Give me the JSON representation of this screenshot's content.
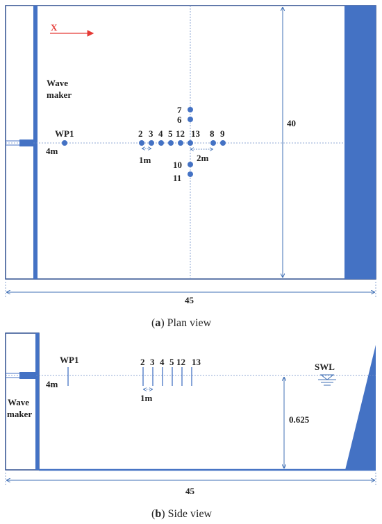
{
  "colors": {
    "blue": "#4472C4",
    "arrow_red": "#E53935",
    "frame": "#2F4F8F",
    "dim": "#3F6FB5",
    "text": "#222222"
  },
  "plan_view": {
    "axis_label": "X",
    "wave_maker_line1": "Wave",
    "wave_maker_line2": "maker",
    "wp1_label": "WP1",
    "dist_4m": "4m",
    "width_label": "40",
    "spacing_1m": "1m",
    "spacing_2m": "2m",
    "length_label": "45",
    "probe_labels": {
      "p2": "2",
      "p3": "3",
      "p4": "4",
      "p5": "5",
      "p12": "12",
      "p13": "13",
      "p8": "8",
      "p9": "9",
      "p7": "7",
      "p6": "6",
      "p10": "10",
      "p11": "11"
    },
    "caption_letter": "a",
    "caption_text": " Plan view"
  },
  "side_view": {
    "wp1_label": "WP1",
    "dist_4m": "4m",
    "spacing_1m": "1m",
    "wave_maker_line1": "Wave",
    "wave_maker_line2": "maker",
    "swl_label": "SWL",
    "depth_label": "0.625",
    "length_label": "45",
    "probe_labels": {
      "p2": "2",
      "p3": "3",
      "p4": "4",
      "p5": "5",
      "p12": "12",
      "p13": "13"
    },
    "caption_letter": "b",
    "caption_text": " Side view"
  }
}
